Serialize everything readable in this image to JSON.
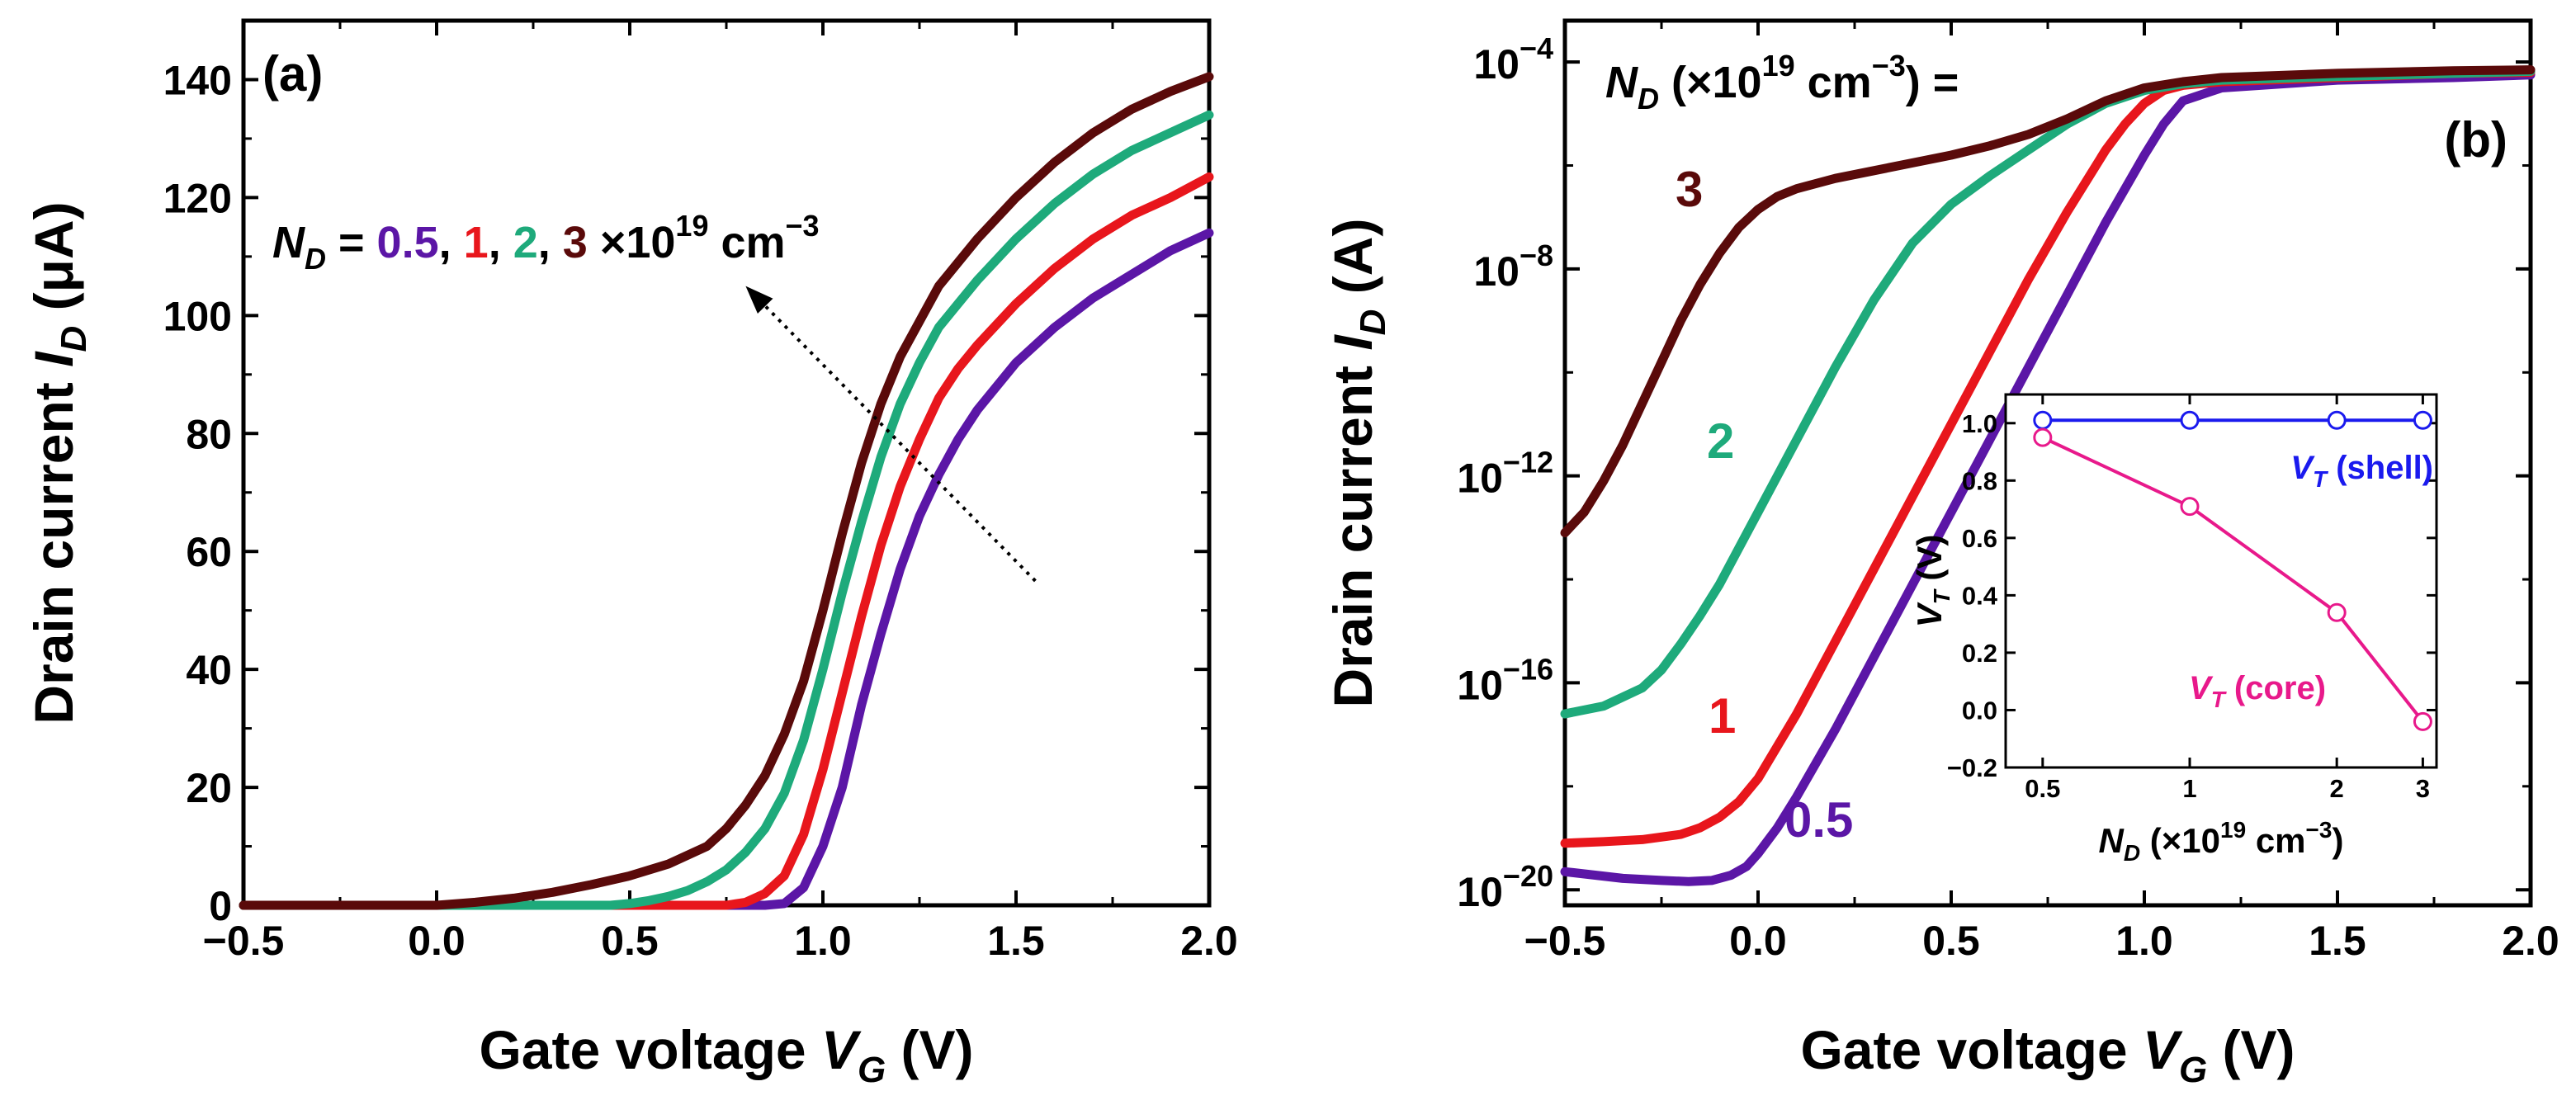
{
  "chart_data": [
    {
      "id": "a",
      "type": "line",
      "panel_label": "(a)",
      "xlabel": {
        "prefix": "Gate voltage ",
        "var": "V",
        "sub": "G",
        "suffix": " (V)"
      },
      "ylabel": {
        "prefix": "Drain current ",
        "var": "I",
        "sub": "D",
        "suffix": " (μA)"
      },
      "xlim": [
        -0.5,
        2.0
      ],
      "ylim": [
        0,
        150
      ],
      "xticks": [
        -0.5,
        0.0,
        0.5,
        1.0,
        1.5,
        2.0
      ],
      "xtick_labels": [
        "−0.5",
        "0.0",
        "0.5",
        "1.0",
        "1.5",
        "2.0"
      ],
      "yticks": [
        0,
        20,
        40,
        60,
        80,
        100,
        120,
        140
      ],
      "ytick_labels": [
        "0",
        "20",
        "40",
        "60",
        "80",
        "100",
        "120",
        "140"
      ],
      "yscale": "linear",
      "annotation": {
        "prefix_var": "N",
        "prefix_sub": "D",
        "eq": " = ",
        "values": [
          "0.5",
          "1",
          "2",
          "3"
        ],
        "sep": ", ",
        "unit_main": " ×10",
        "unit_exp": "19",
        "unit_cm": " cm",
        "unit_cm_exp": "−3",
        "arrow": {
          "from": [
            1.55,
            55
          ],
          "to": [
            0.8,
            105
          ]
        }
      },
      "series": [
        {
          "name": "0.5",
          "color": "#5b16a6",
          "x": [
            -0.5,
            0.6,
            0.8,
            0.85,
            0.9,
            0.95,
            1.0,
            1.05,
            1.1,
            1.15,
            1.2,
            1.25,
            1.3,
            1.35,
            1.4,
            1.5,
            1.6,
            1.7,
            1.8,
            1.9,
            2.0
          ],
          "y": [
            0,
            0,
            0,
            0,
            0.3,
            3,
            10,
            20,
            34,
            46,
            57,
            66,
            73,
            79,
            84,
            92,
            98,
            103,
            107,
            111,
            114
          ]
        },
        {
          "name": "1",
          "color": "#e8161c",
          "x": [
            -0.5,
            0.5,
            0.7,
            0.75,
            0.8,
            0.85,
            0.9,
            0.95,
            1.0,
            1.05,
            1.1,
            1.15,
            1.2,
            1.25,
            1.3,
            1.35,
            1.4,
            1.5,
            1.6,
            1.7,
            1.8,
            1.9,
            2.0
          ],
          "y": [
            0,
            0,
            0,
            0,
            0.5,
            2,
            5,
            12,
            23,
            36,
            49,
            61,
            71,
            79,
            86,
            91,
            95,
            102,
            108,
            113,
            117,
            120,
            123.5
          ]
        },
        {
          "name": "2",
          "color": "#1eaa7b",
          "x": [
            -0.5,
            0.3,
            0.45,
            0.5,
            0.55,
            0.6,
            0.65,
            0.7,
            0.75,
            0.8,
            0.85,
            0.9,
            0.95,
            1.0,
            1.05,
            1.1,
            1.15,
            1.2,
            1.25,
            1.3,
            1.35,
            1.4,
            1.5,
            1.6,
            1.7,
            1.8,
            1.9,
            2.0
          ],
          "y": [
            0,
            0,
            0,
            0.3,
            0.8,
            1.5,
            2.5,
            4,
            6,
            9,
            13,
            19,
            28,
            40,
            53,
            65,
            76,
            85,
            92,
            98,
            102,
            106,
            113,
            119,
            124,
            128,
            131,
            134
          ]
        },
        {
          "name": "3",
          "color": "#5a0a0a",
          "x": [
            -0.5,
            0.0,
            0.1,
            0.2,
            0.3,
            0.4,
            0.5,
            0.6,
            0.7,
            0.75,
            0.8,
            0.85,
            0.9,
            0.95,
            1.0,
            1.05,
            1.1,
            1.15,
            1.2,
            1.25,
            1.3,
            1.35,
            1.4,
            1.5,
            1.6,
            1.7,
            1.8,
            1.9,
            2.0
          ],
          "y": [
            0,
            0,
            0.5,
            1.2,
            2.2,
            3.5,
            5,
            7,
            10,
            13,
            17,
            22,
            29,
            38,
            50,
            63,
            75,
            85,
            93,
            99,
            105,
            109,
            113,
            120,
            126,
            131,
            135,
            138,
            140.5
          ]
        }
      ]
    },
    {
      "id": "b",
      "type": "line",
      "panel_label": "(b)",
      "xlabel": {
        "prefix": "Gate voltage ",
        "var": "V",
        "sub": "G",
        "suffix": " (V)"
      },
      "ylabel": {
        "prefix": "Drain current ",
        "var": "I",
        "sub": "D",
        "suffix": " (A)"
      },
      "xlim": [
        -0.5,
        2.0
      ],
      "yscale": "log",
      "ylim_log10": [
        -20.3,
        -3.2
      ],
      "xticks": [
        -0.5,
        0.0,
        0.5,
        1.0,
        1.5,
        2.0
      ],
      "xtick_labels": [
        "−0.5",
        "0.0",
        "0.5",
        "1.0",
        "1.5",
        "2.0"
      ],
      "ytick_exps": [
        -20,
        -16,
        -12,
        -8,
        -4
      ],
      "ytick_base": "10",
      "ytick_exp_labels": [
        "−20",
        "−16",
        "−12",
        "−8",
        "−4"
      ],
      "header": {
        "var": "N",
        "sub": "D",
        "mid": " (×10",
        "exp": "19",
        "unit": " cm",
        "unit_exp": "−3",
        "end": ") ="
      },
      "curve_labels": [
        "3",
        "2",
        "1",
        "0.5"
      ],
      "series": [
        {
          "name": "0.5",
          "color": "#5b16a6",
          "x": [
            -0.5,
            -0.35,
            -0.25,
            -0.18,
            -0.12,
            -0.07,
            -0.03,
            0.0,
            0.05,
            0.1,
            0.2,
            0.3,
            0.4,
            0.5,
            0.6,
            0.7,
            0.8,
            0.9,
            1.0,
            1.05,
            1.1,
            1.2,
            1.5,
            1.8,
            2.0
          ],
          "y": [
            -19.65,
            -19.78,
            -19.82,
            -19.84,
            -19.82,
            -19.72,
            -19.55,
            -19.3,
            -18.8,
            -18.2,
            -16.9,
            -15.5,
            -14.1,
            -12.7,
            -11.3,
            -9.9,
            -8.5,
            -7.1,
            -5.8,
            -5.2,
            -4.75,
            -4.5,
            -4.35,
            -4.3,
            -4.25
          ]
        },
        {
          "name": "1",
          "color": "#e8161c",
          "x": [
            -0.5,
            -0.4,
            -0.3,
            -0.2,
            -0.15,
            -0.1,
            -0.05,
            0.0,
            0.1,
            0.2,
            0.3,
            0.4,
            0.5,
            0.6,
            0.7,
            0.8,
            0.9,
            0.95,
            1.0,
            1.05,
            1.1,
            1.2,
            1.5,
            1.8,
            2.0
          ],
          "y": [
            -19.1,
            -19.07,
            -19.03,
            -18.93,
            -18.8,
            -18.6,
            -18.3,
            -17.85,
            -16.6,
            -15.2,
            -13.8,
            -12.4,
            -11.0,
            -9.6,
            -8.2,
            -6.9,
            -5.7,
            -5.2,
            -4.8,
            -4.55,
            -4.45,
            -4.38,
            -4.3,
            -4.22,
            -4.2
          ]
        },
        {
          "name": "2",
          "color": "#1eaa7b",
          "x": [
            -0.5,
            -0.4,
            -0.3,
            -0.25,
            -0.2,
            -0.15,
            -0.1,
            -0.05,
            0.0,
            0.1,
            0.2,
            0.3,
            0.4,
            0.5,
            0.6,
            0.7,
            0.8,
            0.9,
            1.0,
            1.1,
            1.2,
            1.5,
            1.8,
            2.0
          ],
          "y": [
            -16.6,
            -16.45,
            -16.1,
            -15.75,
            -15.25,
            -14.7,
            -14.1,
            -13.4,
            -12.7,
            -11.3,
            -9.9,
            -8.6,
            -7.5,
            -6.75,
            -6.2,
            -5.7,
            -5.2,
            -4.8,
            -4.55,
            -4.42,
            -4.35,
            -4.28,
            -4.22,
            -4.18
          ]
        },
        {
          "name": "3",
          "color": "#5a0a0a",
          "x": [
            -0.5,
            -0.45,
            -0.4,
            -0.35,
            -0.3,
            -0.25,
            -0.2,
            -0.15,
            -0.1,
            -0.05,
            0.0,
            0.05,
            0.1,
            0.2,
            0.3,
            0.4,
            0.5,
            0.6,
            0.7,
            0.8,
            0.9,
            1.0,
            1.1,
            1.2,
            1.5,
            1.8,
            2.0
          ],
          "y": [
            -13.1,
            -12.7,
            -12.1,
            -11.4,
            -10.6,
            -9.8,
            -9.0,
            -8.3,
            -7.7,
            -7.2,
            -6.85,
            -6.6,
            -6.45,
            -6.25,
            -6.1,
            -5.95,
            -5.8,
            -5.62,
            -5.4,
            -5.1,
            -4.75,
            -4.5,
            -4.38,
            -4.3,
            -4.22,
            -4.17,
            -4.15
          ]
        }
      ]
    },
    {
      "id": "inset",
      "type": "line",
      "xlabel": {
        "var": "N",
        "sub": "D",
        "mid": " (×10",
        "exp": "19",
        "unit": " cm",
        "unit_exp": "−3",
        "end": ")"
      },
      "ylabel": {
        "var": "V",
        "sub": "T",
        "suffix": " (V)"
      },
      "xscale": "log",
      "xlim": [
        0.42,
        3.2
      ],
      "ylim": [
        -0.2,
        1.1
      ],
      "xticks": [
        0.5,
        1,
        2,
        3
      ],
      "xtick_labels": [
        "0.5",
        "1",
        "2",
        "3"
      ],
      "yticks": [
        -0.2,
        0.0,
        0.2,
        0.4,
        0.6,
        0.8,
        1.0
      ],
      "ytick_labels": [
        "−0.2",
        "0.0",
        "0.2",
        "0.4",
        "0.6",
        "0.8",
        "1.0"
      ],
      "series": [
        {
          "name": "shell",
          "label_var": "V",
          "label_sub": "T",
          "label_suffix": " (shell)",
          "color": "#1a1aee",
          "x": [
            0.5,
            1,
            2,
            3
          ],
          "y": [
            1.01,
            1.01,
            1.01,
            1.01
          ]
        },
        {
          "name": "core",
          "label_var": "V",
          "label_sub": "T",
          "label_suffix": " (core)",
          "color": "#e8198b",
          "x": [
            0.5,
            1,
            2,
            3
          ],
          "y": [
            0.95,
            0.71,
            0.34,
            -0.04
          ]
        }
      ]
    }
  ]
}
